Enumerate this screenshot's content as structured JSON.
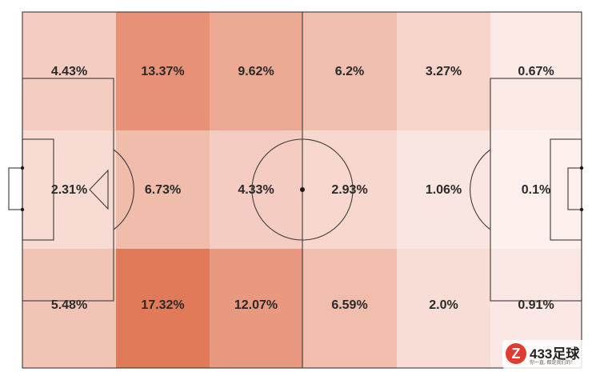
{
  "heatmap": {
    "zones": [
      [
        "4.43%",
        "13.37%",
        "9.62%",
        "6.2%",
        "3.27%",
        "0.67%"
      ],
      [
        "2.31%",
        "6.73%",
        "4.33%",
        "2.93%",
        "1.06%",
        "0.1%"
      ],
      [
        "5.48%",
        "17.32%",
        "12.07%",
        "6.59%",
        "2.0%",
        "0.91%"
      ]
    ],
    "values": [
      [
        4.43,
        13.37,
        9.62,
        6.2,
        3.27,
        0.67
      ],
      [
        2.31,
        6.73,
        4.33,
        2.93,
        1.06,
        0.1
      ],
      [
        5.48,
        17.32,
        12.07,
        6.59,
        2.0,
        0.91
      ]
    ],
    "color_low": "#fdf1ef",
    "color_high": "#e17a58",
    "line_color": "#3a3a3a"
  },
  "watermark": {
    "logo_letter": "Z",
    "brand": "433足球",
    "tagline": "你一直, 都是我们的！"
  }
}
